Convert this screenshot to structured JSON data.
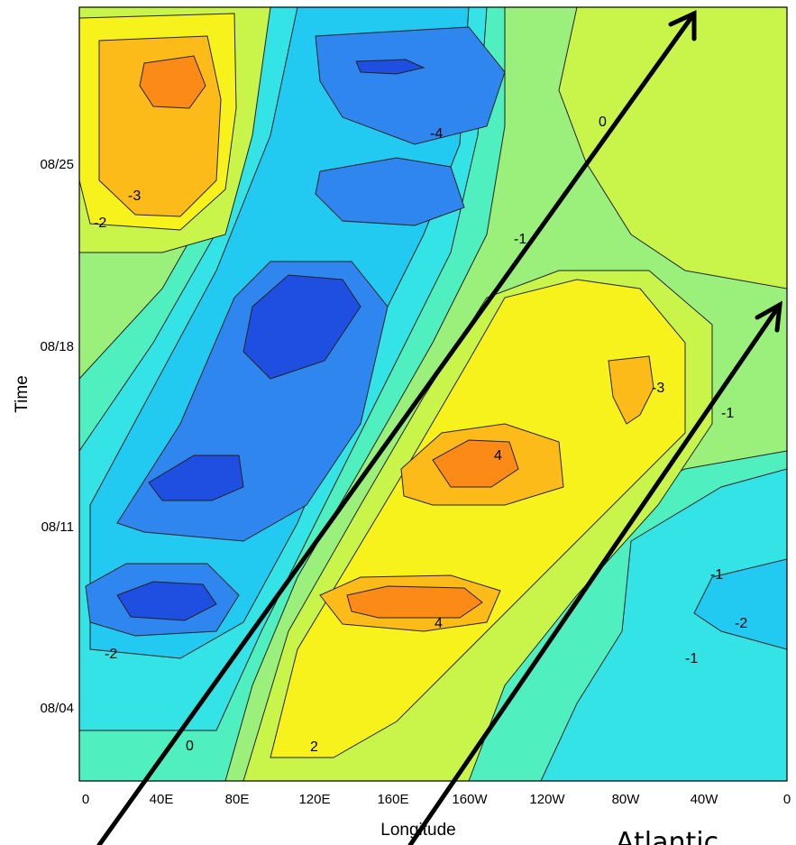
{
  "chart_data": {
    "type": "heatmap",
    "title": "",
    "xlabel": "Longitude",
    "ylabel": "Time",
    "x_ticks": [
      "0",
      "40E",
      "80E",
      "120E",
      "160E",
      "160W",
      "120W",
      "80W",
      "40W",
      "0"
    ],
    "y_ticks": [
      "08/04",
      "08/11",
      "08/18",
      "08/25"
    ],
    "contour_labels": [
      "-4",
      "-1",
      "0",
      "-3",
      "-2",
      "4",
      "-3",
      "-1",
      "-2",
      "-1",
      "-2",
      "4",
      "0",
      "2",
      "-1"
    ],
    "overflow_text": "Atlantic",
    "colors": {
      "deep_blue": "#1e4fe0",
      "blue": "#2f86ef",
      "light_blue": "#22c9f0",
      "cyan": "#33e3e6",
      "aqua_green": "#4fefc0",
      "light_green": "#9af07a",
      "yellow_green": "#c9f54a",
      "yellow": "#f8f21c",
      "orange_yellow": "#fdbb1a",
      "orange": "#fb8a16"
    }
  }
}
